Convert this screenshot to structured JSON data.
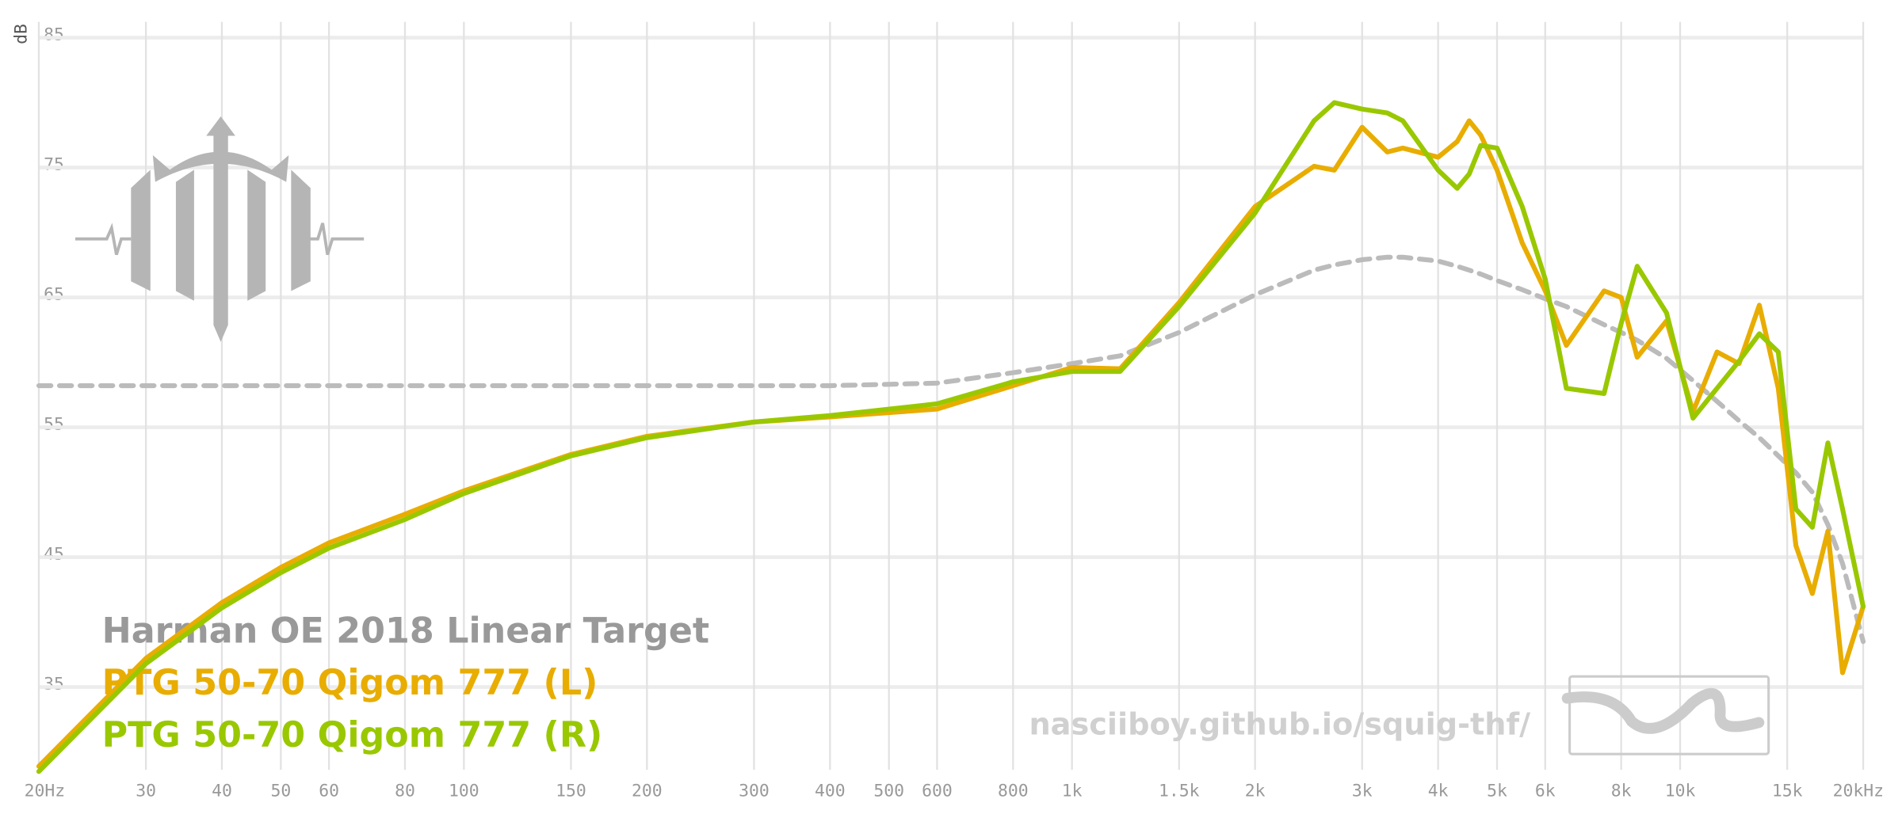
{
  "chart_data": {
    "type": "line",
    "y_label": "dB",
    "watermark": "nasciiboy.github.io/squig-thf/",
    "log_x": true,
    "grid": true,
    "xlim": [
      20,
      20000
    ],
    "ylim": [
      29,
      85
    ],
    "yticks": [
      35,
      45,
      55,
      65,
      75,
      85
    ],
    "xticks": [
      {
        "value": 20,
        "label": "20Hz"
      },
      30,
      40,
      50,
      60,
      80,
      100,
      150,
      200,
      300,
      400,
      500,
      600,
      800,
      {
        "value": 1000,
        "label": "1k"
      },
      {
        "value": 1500,
        "label": "1.5k"
      },
      {
        "value": 2000,
        "label": "2k"
      },
      {
        "value": 3000,
        "label": "3k"
      },
      {
        "value": 4000,
        "label": "4k"
      },
      {
        "value": 5000,
        "label": "5k"
      },
      {
        "value": 6000,
        "label": "6k"
      },
      {
        "value": 8000,
        "label": "8k"
      },
      {
        "value": 10000,
        "label": "10k"
      },
      {
        "value": 15000,
        "label": "15k"
      },
      {
        "value": 20000,
        "label": "20kHz"
      }
    ],
    "x": [
      20,
      30,
      40,
      50,
      60,
      80,
      100,
      150,
      200,
      300,
      400,
      600,
      800,
      1000,
      1200,
      1500,
      2000,
      2500,
      2700,
      3000,
      3300,
      3500,
      4000,
      4300,
      4500,
      4700,
      5000,
      5500,
      6000,
      6500,
      7500,
      8000,
      8500,
      9500,
      10500,
      11500,
      12500,
      13500,
      14500,
      15500,
      16500,
      17500,
      18500,
      20000
    ],
    "series": [
      {
        "name": "Harman OE 2018 Linear Target",
        "color": "#bbbbbb",
        "label_color": "#999999",
        "line_style": "dashed",
        "values": [
          58.2,
          58.2,
          58.2,
          58.2,
          58.2,
          58.2,
          58.2,
          58.2,
          58.2,
          58.2,
          58.2,
          58.4,
          59.2,
          59.9,
          60.5,
          62.3,
          65.2,
          67.1,
          67.5,
          67.9,
          68.1,
          68.1,
          67.8,
          67.4,
          67.1,
          66.8,
          66.3,
          65.6,
          64.9,
          64.3,
          62.9,
          62.3,
          61.7,
          60.3,
          58.6,
          57,
          55.5,
          54.2,
          52.8,
          51.5,
          50,
          47.5,
          44.5,
          38.5
        ]
      },
      {
        "name": "PTG 50-70 Qigom 777 (L)",
        "color": "#e8ad00",
        "line_style": "solid",
        "values": [
          28.9,
          37.2,
          41.5,
          44.2,
          46.1,
          48.3,
          50.1,
          52.9,
          54.3,
          55.4,
          55.8,
          56.4,
          58.2,
          59.6,
          59.5,
          64.6,
          72,
          75.1,
          74.8,
          78.1,
          76.2,
          76.5,
          75.8,
          77,
          78.6,
          77.5,
          74.8,
          69.2,
          65.5,
          61.3,
          65.5,
          65,
          60.4,
          63.2,
          56.2,
          60.8,
          59.9,
          64.4,
          58,
          45.9,
          42.2,
          47,
          36.1,
          41.2
        ]
      },
      {
        "name": "PTG 50-70 Qigom 777 (R)",
        "color": "#99c800",
        "line_style": "solid",
        "values": [
          28.5,
          36.8,
          41.1,
          43.8,
          45.7,
          47.9,
          49.9,
          52.8,
          54.2,
          55.4,
          55.9,
          56.8,
          58.5,
          59.3,
          59.3,
          64.3,
          71.5,
          78.6,
          80,
          79.5,
          79.2,
          78.6,
          74.8,
          73.4,
          74.5,
          76.7,
          76.5,
          72,
          66.4,
          58,
          57.6,
          63,
          67.4,
          63.8,
          55.7,
          58,
          60.1,
          62.2,
          60.8,
          48.7,
          47.3,
          53.8,
          48.7,
          41.2
        ]
      }
    ]
  }
}
